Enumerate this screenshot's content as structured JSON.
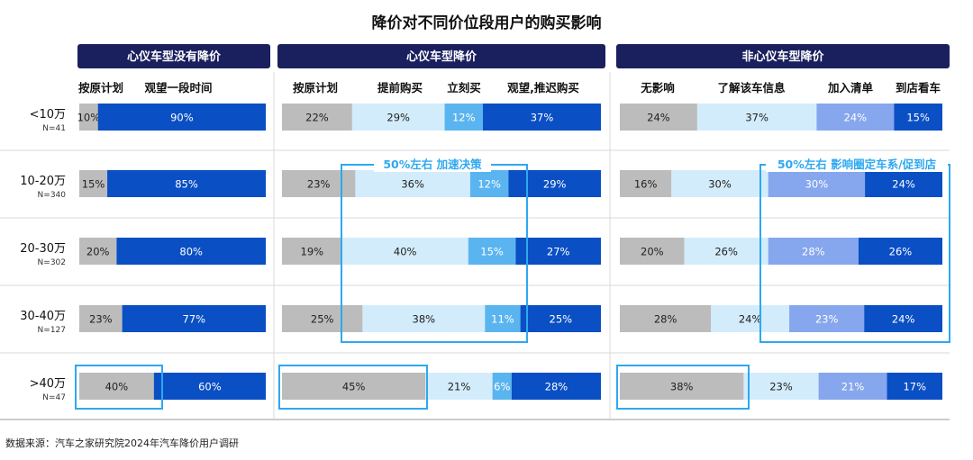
{
  "title": "降价对不同价位段用户的购买影响",
  "source": "数据来源：汽车之家研究院2024年汽车降价用户调研",
  "colors": {
    "header_bg": "#1a1f5e",
    "gray": "#bcbcbc",
    "light_blue": "#d3ecfb",
    "mid_blue": "#5ab4ef",
    "periwinkle": "#86a6ee",
    "dark_blue": "#0a4fc4",
    "highlight": "#2ea8f0",
    "separator": "#d9d9d9"
  },
  "annotations": {
    "middle": "50%左右 加速决策",
    "right": "50%左右 影响圈定车系/促到店"
  },
  "chart_data": {
    "type": "bar",
    "stacked": true,
    "orientation": "horizontal",
    "title": "降价对不同价位段用户的购买影响",
    "categories": [
      {
        "label": "<10万",
        "n": "N=41"
      },
      {
        "label": "10-20万",
        "n": "N=340"
      },
      {
        "label": "20-30万",
        "n": "N=302"
      },
      {
        "label": "30-40万",
        "n": "N=127"
      },
      {
        "label": ">40万",
        "n": "N=47"
      }
    ],
    "panels": [
      {
        "header": "心仪车型没有降价",
        "series": [
          {
            "name": "按原计划",
            "color": "gray",
            "values": [
              10,
              15,
              20,
              23,
              40
            ]
          },
          {
            "name": "观望一段时间",
            "color": "dark_blue",
            "values": [
              90,
              85,
              80,
              77,
              60
            ]
          }
        ]
      },
      {
        "header": "心仪车型降价",
        "series": [
          {
            "name": "按原计划",
            "color": "gray",
            "values": [
              22,
              23,
              19,
              25,
              45
            ]
          },
          {
            "name": "提前购买",
            "color": "light_blue",
            "values": [
              29,
              36,
              40,
              38,
              21
            ]
          },
          {
            "name": "立刻买",
            "color": "mid_blue",
            "values": [
              12,
              12,
              15,
              11,
              6
            ]
          },
          {
            "name": "观望,推迟购买",
            "color": "dark_blue",
            "values": [
              37,
              29,
              27,
              25,
              28
            ]
          }
        ]
      },
      {
        "header": "非心仪车型降价",
        "series": [
          {
            "name": "无影响",
            "color": "gray",
            "values": [
              24,
              16,
              20,
              28,
              38
            ]
          },
          {
            "name": "了解该车信息",
            "color": "light_blue",
            "values": [
              37,
              30,
              26,
              24,
              23
            ]
          },
          {
            "name": "加入清单",
            "color": "periwinkle",
            "values": [
              24,
              30,
              28,
              23,
              21
            ]
          },
          {
            "name": "到店看车",
            "color": "dark_blue",
            "values": [
              15,
              24,
              26,
              24,
              17
            ]
          }
        ]
      }
    ]
  }
}
